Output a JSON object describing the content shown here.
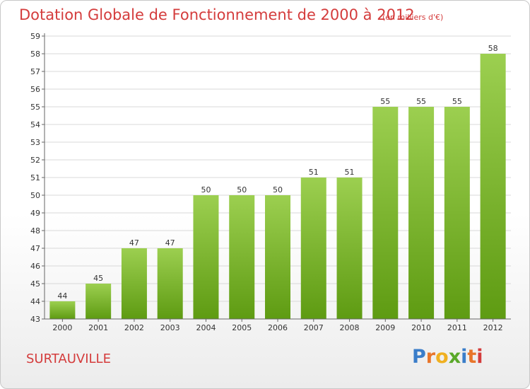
{
  "header": {
    "title": "Dotation Globale de Fonctionnement de 2000 à 2012",
    "unit_note": "(en milliers d'€)"
  },
  "footer": {
    "commune": "SURTAUVILLE",
    "logo": [
      "P",
      "r",
      "o",
      "x",
      "i",
      "t",
      "i"
    ]
  },
  "colors": {
    "title": "#d43c3c",
    "bar_top": "#9ccf50",
    "bar_bottom": "#5e9b12",
    "grid": "#d9d9d9",
    "logo": [
      "#3a7dc9",
      "#e8762b",
      "#f0b020",
      "#5aa829",
      "#3a7dc9",
      "#e8762b",
      "#d43c3c"
    ]
  },
  "chart_data": {
    "type": "bar",
    "title": "Dotation Globale de Fonctionnement de 2000 à 2012",
    "subtitle": "(en milliers d'€)",
    "categories": [
      "2000",
      "2001",
      "2002",
      "2003",
      "2004",
      "2005",
      "2006",
      "2007",
      "2008",
      "2009",
      "2010",
      "2011",
      "2012"
    ],
    "values": [
      44,
      45,
      47,
      47,
      50,
      50,
      50,
      51,
      51,
      55,
      55,
      55,
      58
    ],
    "xlabel": "",
    "ylabel": "",
    "ylim": [
      43,
      59
    ],
    "yticks": [
      43,
      44,
      45,
      46,
      47,
      48,
      49,
      50,
      51,
      52,
      53,
      54,
      55,
      56,
      57,
      58,
      59
    ],
    "grid": true,
    "data_labels": true
  }
}
